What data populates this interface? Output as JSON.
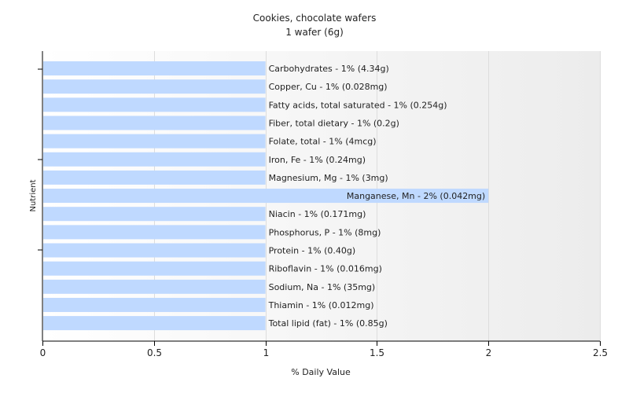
{
  "chart_data": {
    "type": "bar",
    "orientation": "horizontal",
    "title": "Cookies, chocolate wafers",
    "subtitle": "1 wafer (6g)",
    "xlabel": "% Daily Value",
    "ylabel": "Nutrient",
    "xlim": [
      0,
      2.5
    ],
    "xticks": [
      "0",
      "0.5",
      "1",
      "1.5",
      "2",
      "2.5"
    ],
    "grid": true,
    "legend": "none",
    "bar_color": "#bfd9ff",
    "categories": [
      "Carbohydrates",
      "Copper, Cu",
      "Fatty acids, total saturated",
      "Fiber, total dietary",
      "Folate, total",
      "Iron, Fe",
      "Magnesium, Mg",
      "Manganese, Mn",
      "Niacin",
      "Phosphorus, P",
      "Protein",
      "Riboflavin",
      "Sodium, Na",
      "Thiamin",
      "Total lipid (fat)"
    ],
    "values": [
      1,
      1,
      1,
      1,
      1,
      1,
      1,
      2,
      1,
      1,
      1,
      1,
      1,
      1,
      1
    ],
    "data_labels": [
      "Carbohydrates - 1% (4.34g)",
      "Copper, Cu - 1% (0.028mg)",
      "Fatty acids, total saturated - 1% (0.254g)",
      "Fiber, total dietary - 1% (0.2g)",
      "Folate, total - 1% (4mcg)",
      "Iron, Fe - 1% (0.24mg)",
      "Magnesium, Mg - 1% (3mg)",
      "Manganese, Mn - 2% (0.042mg)",
      "Niacin - 1% (0.171mg)",
      "Phosphorus, P - 1% (8mg)",
      "Protein - 1% (0.40g)",
      "Riboflavin - 1% (0.016mg)",
      "Sodium, Na - 1% (35mg)",
      "Thiamin - 1% (0.012mg)",
      "Total lipid (fat) - 1% (0.85g)"
    ]
  }
}
